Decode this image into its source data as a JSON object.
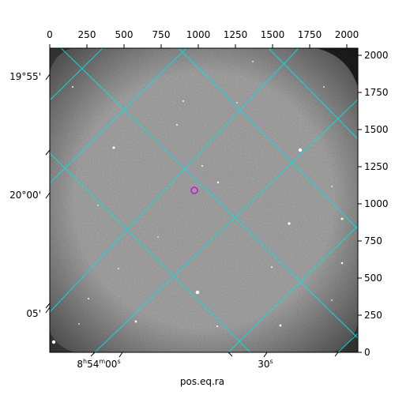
{
  "x_axis_label": "pos.eq.ra",
  "top_ticks": [
    "0",
    "250",
    "500",
    "750",
    "1000",
    "1250",
    "1500",
    "1750",
    "2000"
  ],
  "right_ticks": [
    "0",
    "250",
    "500",
    "750",
    "1000",
    "1250",
    "1500",
    "1750",
    "2000"
  ],
  "dec_labels": [
    "19°55'",
    "20°00'",
    "05'"
  ],
  "ra_labels": {
    "label_0": {
      "h": "8",
      "m": "54",
      "s": "00"
    },
    "label_1": {
      "s": "30"
    }
  },
  "colors": {
    "grid": "#00e5e5",
    "marker": "#d000d0",
    "background_sky": "#808080"
  }
}
